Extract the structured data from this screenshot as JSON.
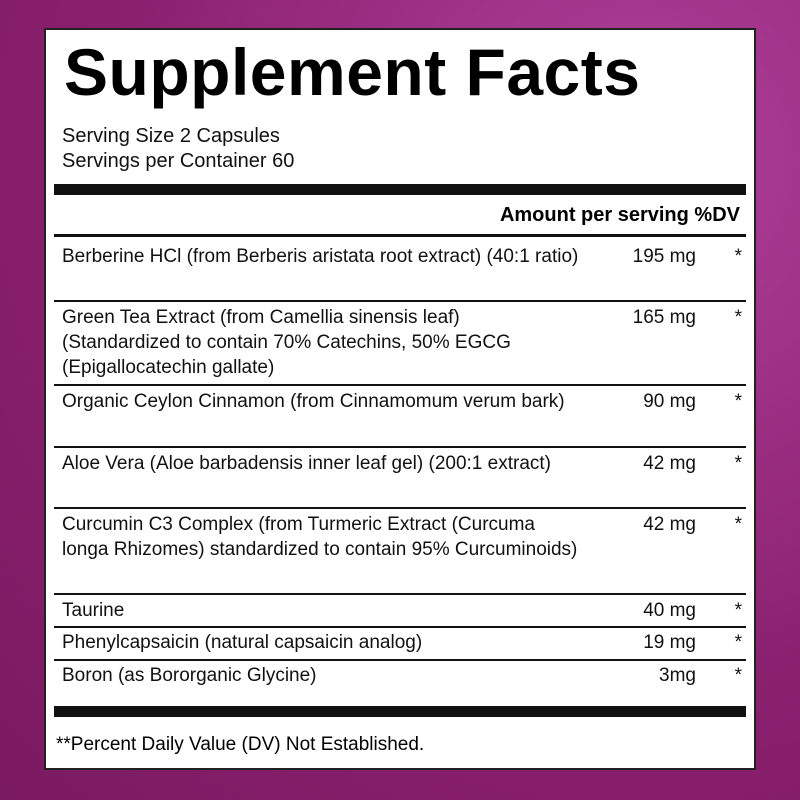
{
  "title": "Supplement Facts",
  "serving_size": "Serving Size 2 Capsules",
  "servings_per_container": "Servings per Container 60",
  "header": "Amount per serving %DV",
  "rows": [
    {
      "name": "Berberine HCl (from Berberis aristata root extract) (40:1 ratio)",
      "amount": "195 mg",
      "dv": "*"
    },
    {
      "name": "Green Tea Extract (from Camellia sinensis leaf) (Standardized to contain 70% Catechins, 50% EGCG (Epigallocatechin gallate)",
      "amount": "165 mg",
      "dv": "*"
    },
    {
      "name": "Organic Ceylon Cinnamon (from Cinnamomum verum bark)",
      "amount": "90 mg",
      "dv": "*"
    },
    {
      "name": "Aloe Vera (Aloe barbadensis inner leaf gel) (200:1 extract)",
      "amount": "42 mg",
      "dv": "*"
    },
    {
      "name": "Curcumin C3 Complex (from Turmeric Extract (Curcuma longa Rhizomes) standardized to contain 95% Curcuminoids)",
      "amount": "42 mg",
      "dv": "*"
    },
    {
      "name": "Taurine",
      "amount": "40 mg",
      "dv": "*"
    },
    {
      "name": "Phenylcapsaicin (natural capsaicin analog)",
      "amount": "19 mg",
      "dv": "*"
    },
    {
      "name": "Boron (as Bororganic Glycine)",
      "amount": "3mg",
      "dv": "*"
    }
  ],
  "footnote": "**Percent Daily Value (DV) Not Established."
}
